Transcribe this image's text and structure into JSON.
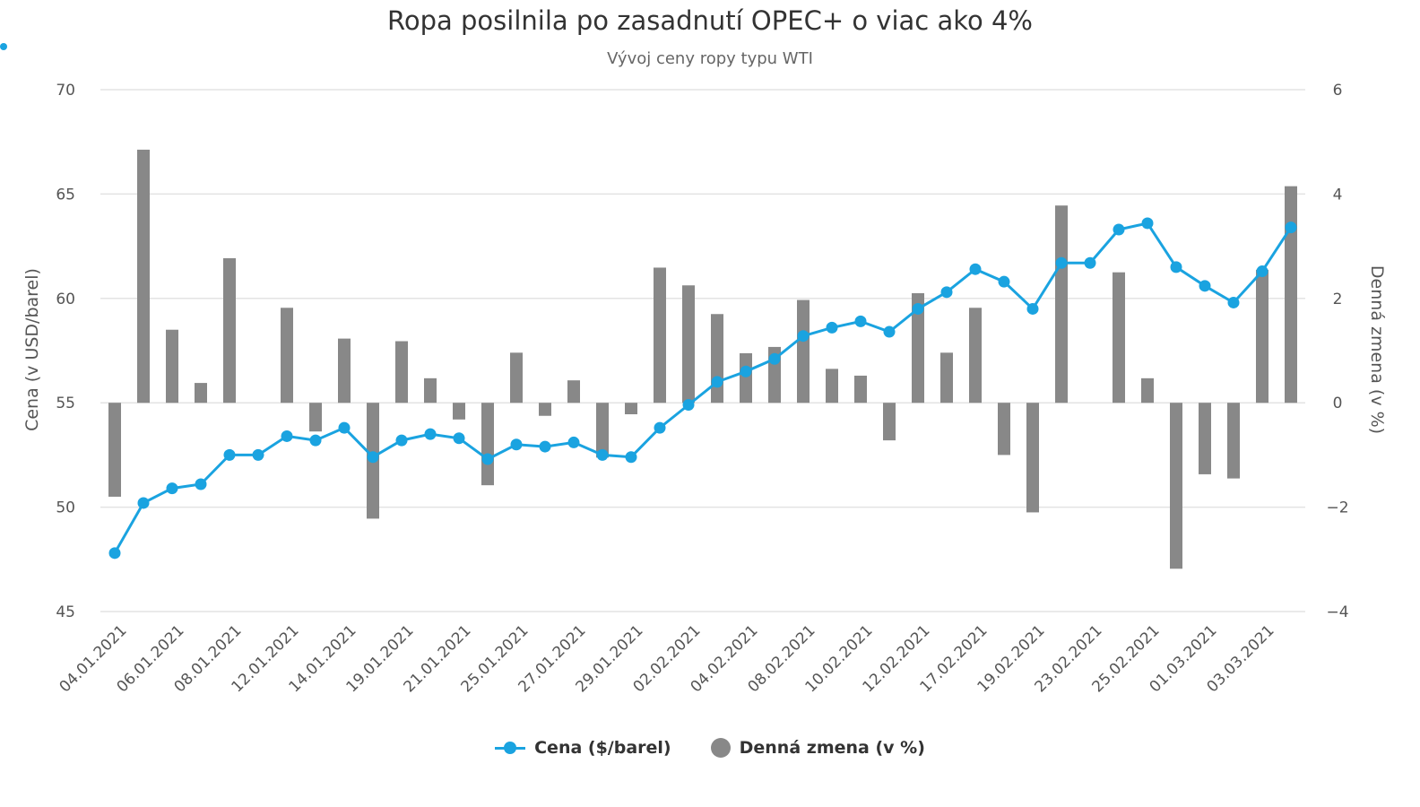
{
  "title": "Ropa posilnila po zasadnutí OPEC+ o viac ako 4%",
  "subtitle": "Vývoj ceny ropy typu WTI",
  "colors": {
    "price": "#1aa3e0",
    "change": "#888888"
  },
  "legend": {
    "price_label": "Cena ($/barel)",
    "change_label": "Denná zmena (v %)"
  },
  "chart_data": {
    "type": "bar+line",
    "title": "Ropa posilnila po zasadnutí OPEC+ o viac ako 4%",
    "subtitle": "Vývoj ceny ropy typu WTI",
    "x_tick_labels": [
      "04.01.2021",
      "06.01.2021",
      "08.01.2021",
      "12.01.2021",
      "14.01.2021",
      "19.01.2021",
      "21.01.2021",
      "25.01.2021",
      "27.01.2021",
      "29.01.2021",
      "02.02.2021",
      "04.02.2021",
      "08.02.2021",
      "10.02.2021",
      "12.02.2021",
      "17.02.2021",
      "19.02.2021",
      "23.02.2021",
      "25.02.2021",
      "01.03.2021",
      "03.03.2021"
    ],
    "y_left": {
      "label": "Cena (v USD/barel)",
      "min": 45,
      "max": 70,
      "ticks": [
        45,
        50,
        55,
        60,
        65,
        70
      ]
    },
    "y_right": {
      "label": "Denná zmena (v %)",
      "min": -4,
      "max": 6,
      "ticks": [
        -4,
        -2,
        0,
        2,
        4,
        6
      ]
    },
    "grid": true,
    "legend_position": "bottom-center",
    "series": [
      {
        "name": "Cena ($/barel)",
        "type": "line",
        "axis": "left",
        "values": [
          47.8,
          50.2,
          50.9,
          51.1,
          52.5,
          52.5,
          53.4,
          53.2,
          53.8,
          52.4,
          53.2,
          53.5,
          53.3,
          52.3,
          53.0,
          52.9,
          53.1,
          52.5,
          52.4,
          53.8,
          54.9,
          56.0,
          56.5,
          57.1,
          58.2,
          58.6,
          58.9,
          58.4,
          59.5,
          60.3,
          61.4,
          60.8,
          59.5,
          61.7,
          61.7,
          63.3,
          63.6,
          61.5,
          60.6,
          59.8,
          61.3,
          63.4
        ]
      },
      {
        "name": "Denná zmena (v %)",
        "type": "bar",
        "axis": "right",
        "values": [
          -1.8,
          4.85,
          1.4,
          0.38,
          2.77,
          0.0,
          1.82,
          -0.55,
          1.23,
          -2.22,
          1.18,
          0.47,
          -0.32,
          -1.58,
          0.96,
          -0.25,
          0.43,
          -1.05,
          -0.22,
          2.59,
          2.25,
          1.7,
          0.95,
          1.07,
          1.97,
          0.65,
          0.52,
          -0.72,
          2.1,
          0.96,
          1.82,
          -1.0,
          -2.1,
          3.78,
          0.0,
          2.5,
          0.47,
          -3.18,
          -1.37,
          -1.45,
          2.55,
          4.15
        ]
      }
    ]
  }
}
